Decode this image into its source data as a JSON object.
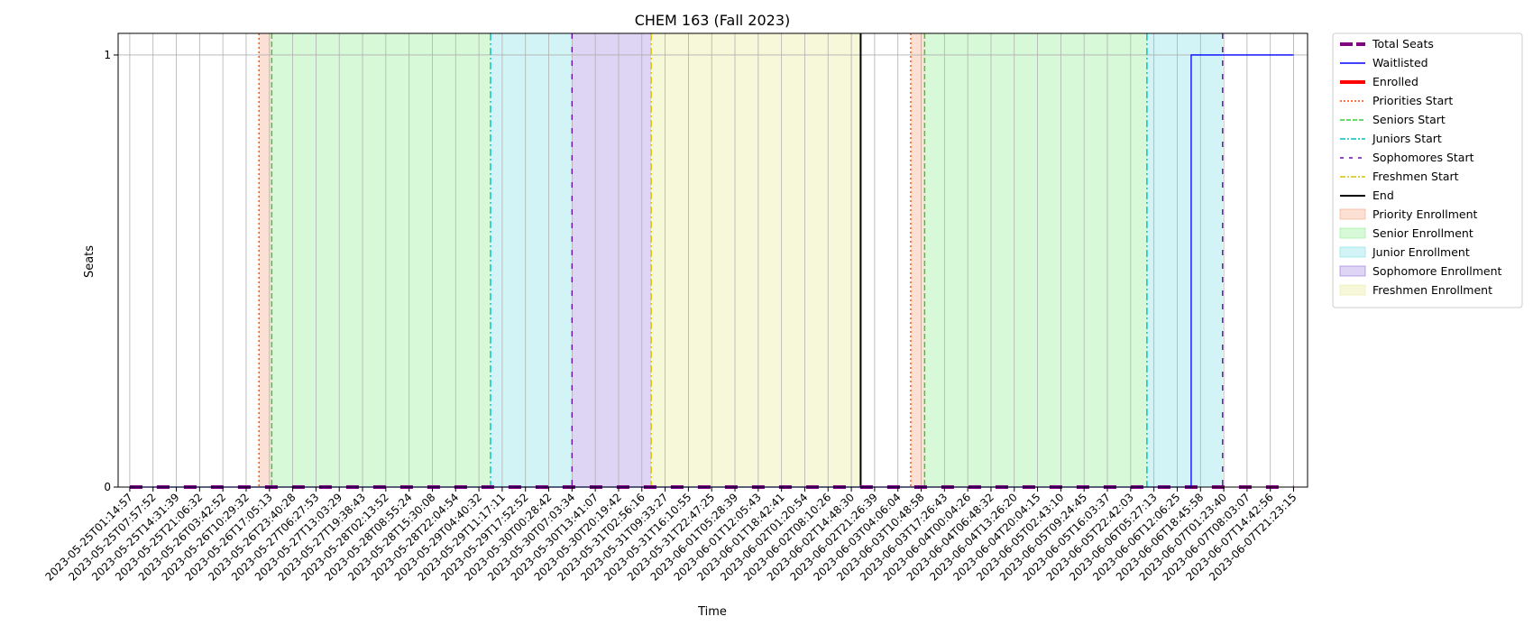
{
  "chart_data": {
    "type": "line",
    "title": "CHEM 163 (Fall 2023)",
    "xlabel": "Time",
    "ylabel": "Seats",
    "ylim": [
      0,
      1.05
    ],
    "yticks": [
      0,
      1
    ],
    "grid": true,
    "legend_position": "outside-top-right",
    "x": [
      "2023-05-25T01:14:57",
      "2023-05-25T07:57:52",
      "2023-05-25T14:31:39",
      "2023-05-25T21:06:32",
      "2023-05-26T03:42:52",
      "2023-05-26T10:29:32",
      "2023-05-26T17:05:13",
      "2023-05-26T23:40:28",
      "2023-05-27T06:27:53",
      "2023-05-27T13:03:29",
      "2023-05-27T19:38:43",
      "2023-05-28T02:13:52",
      "2023-05-28T08:55:24",
      "2023-05-28T15:30:08",
      "2023-05-28T22:04:54",
      "2023-05-29T04:40:32",
      "2023-05-29T11:17:11",
      "2023-05-29T17:52:52",
      "2023-05-30T00:28:42",
      "2023-05-30T07:03:34",
      "2023-05-30T13:41:07",
      "2023-05-30T20:19:42",
      "2023-05-31T02:56:16",
      "2023-05-31T09:33:27",
      "2023-05-31T16:10:55",
      "2023-05-31T22:47:25",
      "2023-06-01T05:28:39",
      "2023-06-01T12:05:43",
      "2023-06-01T18:42:41",
      "2023-06-02T01:20:54",
      "2023-06-02T08:10:26",
      "2023-06-02T14:48:30",
      "2023-06-02T21:26:39",
      "2023-06-03T04:06:04",
      "2023-06-03T10:48:58",
      "2023-06-03T17:26:43",
      "2023-06-04T00:04:26",
      "2023-06-04T06:48:32",
      "2023-06-04T13:26:20",
      "2023-06-04T20:04:15",
      "2023-06-05T02:43:10",
      "2023-06-05T09:24:45",
      "2023-06-05T16:03:37",
      "2023-06-05T22:42:03",
      "2023-06-06T05:27:13",
      "2023-06-06T12:06:25",
      "2023-06-06T18:45:58",
      "2023-06-07T01:23:40",
      "2023-06-07T08:03:07",
      "2023-06-07T14:42:56",
      "2023-06-07T21:23:15"
    ],
    "series": [
      {
        "name": "Total Seats",
        "color": "#800080",
        "style": "dashed-thick",
        "step_values": [
          [
            0,
            0
          ],
          [
            50,
            0
          ]
        ]
      },
      {
        "name": "Waitlisted",
        "color": "#0000ff",
        "style": "solid",
        "step_values": [
          [
            0,
            0
          ],
          [
            45.6,
            0
          ],
          [
            45.6,
            1
          ],
          [
            50,
            1
          ]
        ]
      },
      {
        "name": "Enrolled",
        "color": "#ff0000",
        "style": "solid-thick",
        "step_values": []
      }
    ],
    "markers": [
      {
        "name": "Priorities Start",
        "color": "#ff4500",
        "style": "dotted",
        "x": [
          5.55,
          33.55
        ]
      },
      {
        "name": "Seniors Start",
        "color": "#32cd32",
        "style": "dashed",
        "x": [
          6.1,
          34.15
        ]
      },
      {
        "name": "Juniors Start",
        "color": "#00bfbf",
        "style": "dashdot",
        "x": [
          15.5,
          43.7
        ]
      },
      {
        "name": "Sophomores Start",
        "color": "#6a0dad",
        "style": "loosedash",
        "x": [
          19.0,
          46.95
        ]
      },
      {
        "name": "Freshmen Start",
        "color": "#d4c400",
        "style": "dashdot",
        "x": [
          22.4
        ]
      },
      {
        "name": "End",
        "color": "#000000",
        "style": "solid",
        "x": [
          31.4
        ]
      }
    ],
    "spans": [
      {
        "name": "Priority Enrollment",
        "color": "#f4a582",
        "alpha": 0.35,
        "ranges": [
          [
            5.55,
            6.1
          ],
          [
            33.55,
            34.15
          ]
        ]
      },
      {
        "name": "Senior Enrollment",
        "color": "#90ee90",
        "alpha": 0.35,
        "ranges": [
          [
            6.1,
            15.5
          ],
          [
            34.15,
            43.7
          ]
        ]
      },
      {
        "name": "Junior Enrollment",
        "color": "#7fdfe6",
        "alpha": 0.35,
        "ranges": [
          [
            15.5,
            19.0
          ],
          [
            43.7,
            46.95
          ]
        ]
      },
      {
        "name": "Sophomore Enrollment",
        "color": "#9370db",
        "alpha": 0.3,
        "ranges": [
          [
            19.0,
            22.4
          ]
        ]
      },
      {
        "name": "Freshmen Enrollment",
        "color": "#eeeeaa",
        "alpha": 0.45,
        "ranges": [
          [
            22.4,
            31.4
          ]
        ]
      }
    ]
  }
}
